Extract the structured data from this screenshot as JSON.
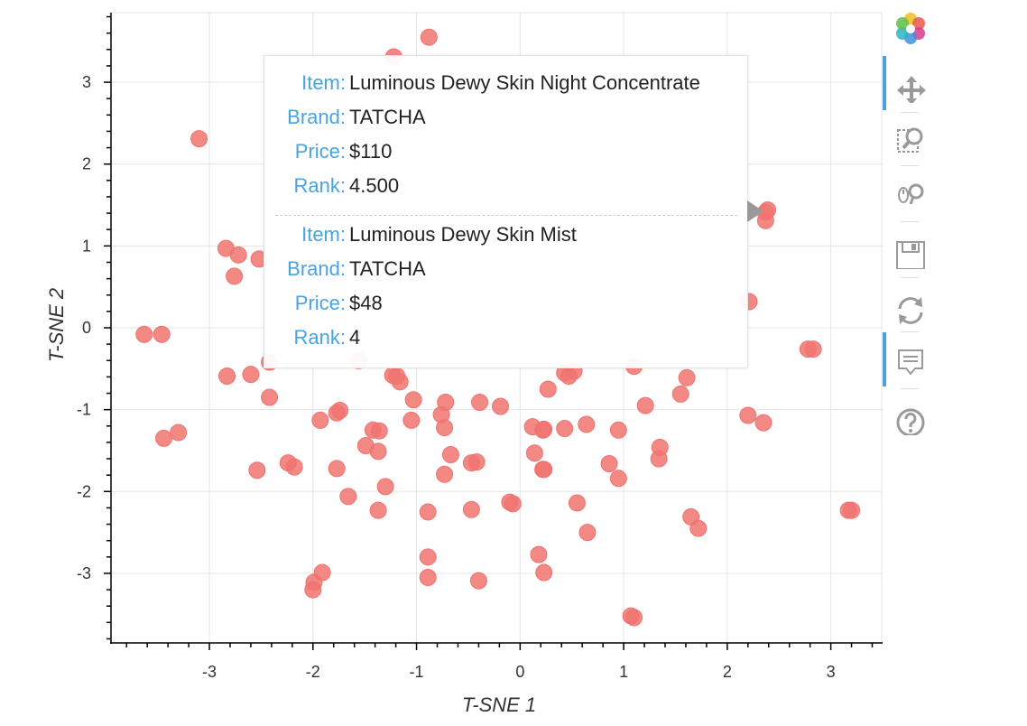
{
  "chart_data": {
    "type": "scatter",
    "xlabel": "T-SNE 1",
    "ylabel": "T-SNE 2",
    "xlim": [
      -3.95,
      3.5
    ],
    "ylim": [
      -3.85,
      3.85
    ],
    "xticks": [
      -3,
      -2,
      -1,
      0,
      1,
      2,
      3
    ],
    "yticks": [
      -3,
      -2,
      -1,
      0,
      1,
      2,
      3
    ],
    "point_color": "#f07470",
    "points": [
      [
        -0.88,
        3.55
      ],
      [
        -1.22,
        3.31
      ],
      [
        -3.1,
        2.31
      ],
      [
        -2.84,
        0.97
      ],
      [
        -2.72,
        0.89
      ],
      [
        -2.76,
        0.63
      ],
      [
        -2.52,
        0.84
      ],
      [
        -3.63,
        -0.08
      ],
      [
        -3.46,
        -0.08
      ],
      [
        -2.83,
        -0.59
      ],
      [
        -2.6,
        -0.57
      ],
      [
        -2.42,
        -0.42
      ],
      [
        -2.42,
        -0.85
      ],
      [
        -3.44,
        -1.35
      ],
      [
        -3.3,
        -1.28
      ],
      [
        -2.54,
        -1.74
      ],
      [
        -2.24,
        -1.65
      ],
      [
        -2.18,
        -1.7
      ],
      [
        -1.93,
        -1.13
      ],
      [
        -1.77,
        -1.04
      ],
      [
        -1.74,
        -1.01
      ],
      [
        -1.56,
        -0.4
      ],
      [
        -1.23,
        -0.58
      ],
      [
        -1.19,
        -0.59
      ],
      [
        -1.16,
        -0.66
      ],
      [
        -1.03,
        -0.88
      ],
      [
        -1.05,
        -1.13
      ],
      [
        -1.42,
        -1.25
      ],
      [
        -1.36,
        -1.26
      ],
      [
        -1.49,
        -1.44
      ],
      [
        -1.37,
        -1.51
      ],
      [
        -1.77,
        -1.72
      ],
      [
        -1.66,
        -2.06
      ],
      [
        -1.3,
        -1.94
      ],
      [
        -1.37,
        -2.23
      ],
      [
        -1.91,
        -2.99
      ],
      [
        -1.99,
        -3.11
      ],
      [
        -2.0,
        -3.2
      ],
      [
        -0.89,
        -2.25
      ],
      [
        -0.89,
        -2.8
      ],
      [
        -0.89,
        -3.05
      ],
      [
        -0.72,
        -0.91
      ],
      [
        -0.76,
        -1.06
      ],
      [
        -0.73,
        -1.22
      ],
      [
        -0.67,
        -1.55
      ],
      [
        -0.73,
        -1.79
      ],
      [
        -0.39,
        -0.91
      ],
      [
        -0.19,
        -0.96
      ],
      [
        -0.47,
        -1.65
      ],
      [
        -0.42,
        -1.64
      ],
      [
        -0.47,
        -2.22
      ],
      [
        -0.4,
        -3.09
      ],
      [
        -0.1,
        -2.13
      ],
      [
        -0.07,
        -2.15
      ],
      [
        0.12,
        -1.21
      ],
      [
        0.23,
        -1.24
      ],
      [
        0.22,
        -1.25
      ],
      [
        0.14,
        -1.53
      ],
      [
        0.22,
        -1.73
      ],
      [
        0.23,
        -1.73
      ],
      [
        0.18,
        -2.77
      ],
      [
        0.23,
        -2.99
      ],
      [
        0.27,
        -0.75
      ],
      [
        0.43,
        -0.55
      ],
      [
        0.47,
        -0.59
      ],
      [
        0.52,
        -0.53
      ],
      [
        0.43,
        -1.23
      ],
      [
        0.64,
        -1.18
      ],
      [
        0.55,
        -2.14
      ],
      [
        0.65,
        -2.5
      ],
      [
        0.95,
        -1.25
      ],
      [
        0.86,
        -1.66
      ],
      [
        0.95,
        -1.84
      ],
      [
        1.07,
        -3.52
      ],
      [
        1.1,
        -3.54
      ],
      [
        1.21,
        -0.95
      ],
      [
        1.35,
        -1.46
      ],
      [
        1.34,
        -1.6
      ],
      [
        1.1,
        -0.47
      ],
      [
        1.55,
        -0.81
      ],
      [
        1.61,
        -0.61
      ],
      [
        1.65,
        -2.31
      ],
      [
        1.72,
        -2.45
      ],
      [
        2.2,
        -1.07
      ],
      [
        2.35,
        -1.16
      ],
      [
        2.21,
        0.32
      ],
      [
        2.39,
        1.44
      ],
      [
        2.37,
        1.41
      ],
      [
        2.37,
        1.31
      ],
      [
        2.78,
        -0.26
      ],
      [
        2.83,
        -0.26
      ],
      [
        3.17,
        -2.23
      ],
      [
        3.2,
        -2.23
      ]
    ]
  },
  "tooltip": {
    "items": [
      {
        "fields": [
          {
            "label": "Item:",
            "value": "Luminous Dewy Skin Night Concentrate"
          },
          {
            "label": "Brand:",
            "value": "TATCHA"
          },
          {
            "label": "Price:",
            "value": "$110"
          },
          {
            "label": "Rank:",
            "value": "4.500"
          }
        ]
      },
      {
        "fields": [
          {
            "label": "Item:",
            "value": "Luminous Dewy Skin Mist"
          },
          {
            "label": "Brand:",
            "value": "TATCHA"
          },
          {
            "label": "Price:",
            "value": "$48"
          },
          {
            "label": "Rank:",
            "value": "4"
          }
        ]
      }
    ]
  },
  "toolbar": {
    "tools": [
      {
        "name": "bokeh-logo-icon",
        "active": false,
        "clickable": true
      },
      {
        "name": "pan-tool-icon",
        "active": true,
        "clickable": true
      },
      {
        "name": "box-zoom-tool-icon",
        "active": false,
        "clickable": true
      },
      {
        "name": "wheel-zoom-tool-icon",
        "active": false,
        "clickable": true
      },
      {
        "name": "save-tool-icon",
        "active": false,
        "clickable": true
      },
      {
        "name": "reset-tool-icon",
        "active": false,
        "clickable": true
      },
      {
        "name": "hover-tool-icon",
        "active": true,
        "clickable": true
      },
      {
        "name": "help-tool-icon",
        "active": false,
        "clickable": true
      }
    ]
  }
}
